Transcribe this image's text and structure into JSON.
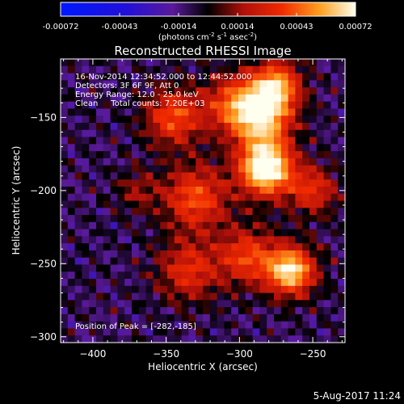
{
  "colorbar": {
    "tick_labels": [
      "-0.00072",
      "-0.00043",
      "-0.00014",
      "0.00014",
      "0.00043",
      "0.00072"
    ],
    "units_parts": [
      "(photons cm",
      "-2",
      " s",
      "-1",
      " asec",
      "-2",
      ")"
    ]
  },
  "footer": {
    "date_stamp": "5-Aug-2017 11:24"
  },
  "chart_data": {
    "type": "heatmap",
    "title": "Reconstructed RHESSI Image",
    "xlabel": "Heliocentric X (arcsec)",
    "ylabel": "Heliocentric Y (arcsec)",
    "xlim": [
      -422,
      -228
    ],
    "ylim": [
      -304,
      -110
    ],
    "x_ticks": [
      -400,
      -350,
      -300,
      -250
    ],
    "y_ticks": [
      -150,
      -200,
      -250,
      -300
    ],
    "x_tick_labels": [
      "−400",
      "−350",
      "−300",
      "−250"
    ],
    "y_tick_labels": [
      "−150",
      "−200",
      "−250",
      "−300"
    ],
    "color_range": [
      -0.00072,
      0.00072
    ],
    "info_lines": [
      "16-Nov-2014 12:34:52.000 to 12:44:52.000",
      "Detectors: 3F 6F 9F, Att 0",
      "Energy Range: 12.0 - 25.0 keV",
      "Clean     Total counts: 7.20E+03"
    ],
    "peak_label": "Position of Peak = [-282,-185]",
    "peak": [
      -282,
      -185
    ],
    "grid_size": 40,
    "sources": [
      {
        "x": -282,
        "y": -185,
        "sigma": 13,
        "amp": 1.0
      },
      {
        "x": -285,
        "y": -150,
        "sigma": 15,
        "amp": 0.75
      },
      {
        "x": -275,
        "y": -128,
        "sigma": 12,
        "amp": 0.65
      },
      {
        "x": -305,
        "y": -140,
        "sigma": 14,
        "amp": 0.45
      },
      {
        "x": -265,
        "y": -255,
        "sigma": 12,
        "amp": 0.85
      },
      {
        "x": -295,
        "y": -245,
        "sigma": 14,
        "amp": 0.5
      },
      {
        "x": -250,
        "y": -200,
        "sigma": 12,
        "amp": 0.45
      },
      {
        "x": -330,
        "y": -205,
        "sigma": 16,
        "amp": 0.55
      },
      {
        "x": -345,
        "y": -150,
        "sigma": 14,
        "amp": 0.55
      },
      {
        "x": -335,
        "y": -255,
        "sigma": 15,
        "amp": 0.45
      },
      {
        "x": -370,
        "y": -200,
        "sigma": 10,
        "amp": 0.25
      }
    ]
  }
}
